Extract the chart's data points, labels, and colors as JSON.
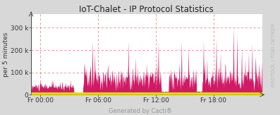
{
  "title": "IoT-Chalet - IP Protocol Statistics",
  "ylabel": "per 5 minutes",
  "xlabel_ticks": [
    "Fr 00:00",
    "Fr 06:00",
    "Fr 12:00",
    "Fr 18:00"
  ],
  "xlabel_tick_pos": [
    0.04,
    0.29,
    0.54,
    0.79
  ],
  "watermark": "RRDTOOL / TOBI OETIKER",
  "footer": "Generated by Cacti®",
  "ylim": [
    0,
    360000
  ],
  "yticks": [
    0,
    100000,
    200000,
    300000
  ],
  "ytick_labels": [
    "0",
    "100 k",
    "200 k",
    "300 k"
  ],
  "bg_color": "#d8d8d8",
  "plot_bg_color": "#ffffff",
  "grid_color": "#e08080",
  "area_color_main": "#cc0055",
  "yellow_band_color": "#dddd00",
  "spine_color": "#444444",
  "title_fontsize": 8.5,
  "axis_fontsize": 6.5,
  "footer_fontsize": 6,
  "watermark_fontsize": 5
}
